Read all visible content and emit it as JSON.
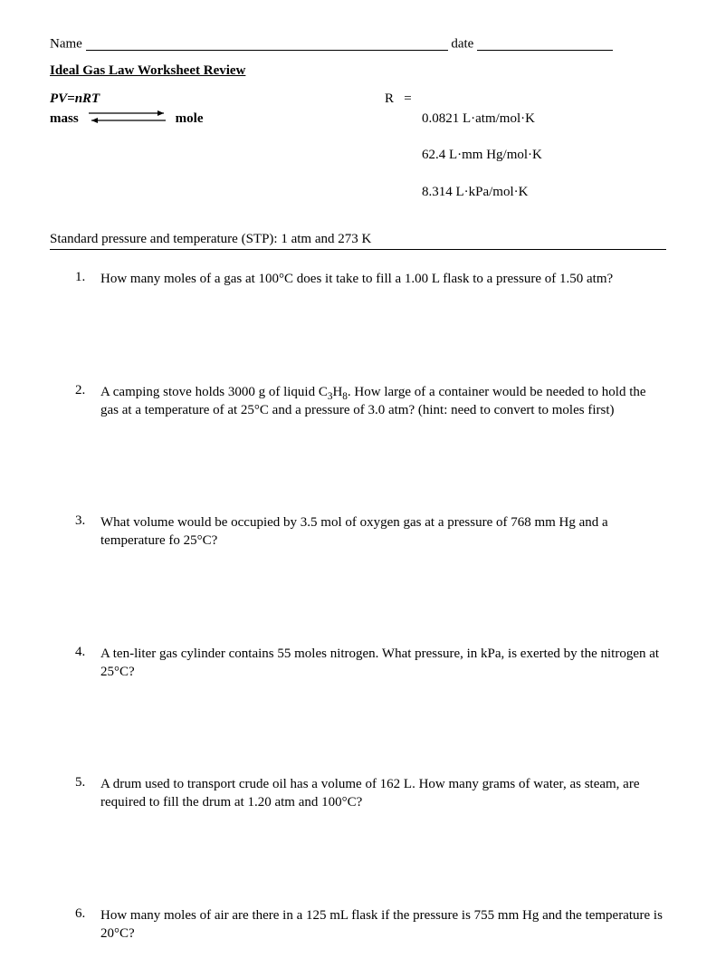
{
  "header": {
    "name_label": "Name",
    "date_label": "date"
  },
  "title": "Ideal Gas Law Worksheet Review",
  "formula": "PV=nRT",
  "r_label": "R   =   ",
  "r_values": [
    "0.0821 L·atm/mol·K",
    "62.4 L·mm Hg/mol·K",
    "8.314 L·kPa/mol·K"
  ],
  "mass_label": "mass",
  "mole_label": "mole",
  "stp_text": "Standard pressure and temperature (STP): 1 atm and 273 K",
  "questions": [
    "How many moles of a gas at 100°C does it take to fill a 1.00 L flask to a pressure of 1.50 atm?",
    "A camping stove holds 3000 g of liquid C{sub3}H{sub8}. How large of a container would be needed to hold the gas at a temperature of at 25°C and a pressure of 3.0 atm?  (hint: need to convert to moles first)",
    "What volume would be occupied by 3.5 mol of oxygen gas at a pressure of 768 mm Hg and a temperature fo 25°C?",
    "A ten-liter gas cylinder contains 55 moles nitrogen. What pressure, in kPa, is exerted by the nitrogen at 25°C?",
    "A drum used to transport crude oil has a volume of 162 L. How many grams of  water, as steam, are required to fill the drum at 1.20 atm and 100°C?",
    "How many moles of air are there in a 125 mL flask if the pressure is 755 mm Hg and the temperature is 20°C?"
  ]
}
